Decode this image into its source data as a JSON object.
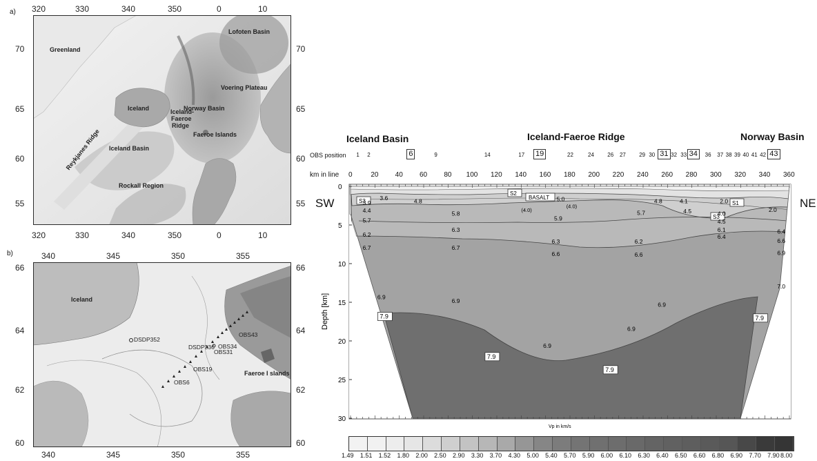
{
  "panel_a": {
    "letter": "a)",
    "top_ticks": [
      "320",
      "330",
      "340",
      "350",
      "0",
      "10"
    ],
    "bottom_ticks": [
      "320",
      "330",
      "340",
      "350",
      "0",
      "10"
    ],
    "left_ticks": [
      "70",
      "65",
      "60",
      "55"
    ],
    "right_ticks": [
      "70",
      "65",
      "60",
      "55"
    ],
    "labels": {
      "greenland": "Greenland",
      "lofoten": "Lofoten Basin",
      "voering": "Voering Plateau",
      "iceland": "Iceland",
      "ifr1": "Iceland-",
      "ifr2": "Faeroe",
      "ifr3": "Ridge",
      "norway": "Norway  Basin",
      "faeroe": "Faeroe Islands",
      "reykjanes": "Reykjanes Ridge",
      "iceland_basin": "Iceland Basin",
      "rockall": "Rockall Region"
    }
  },
  "panel_b": {
    "letter": "b)",
    "top_ticks": [
      "340",
      "345",
      "350",
      "355"
    ],
    "bottom_ticks": [
      "340",
      "345",
      "350",
      "355"
    ],
    "left_ticks": [
      "66",
      "64",
      "62",
      "60"
    ],
    "right_ticks": [
      "66",
      "64",
      "62",
      "60"
    ],
    "labels": {
      "iceland": "Iceland",
      "faeroe": "Faeroe I slands",
      "dsdp352": "DSDP352",
      "dsdp336": "DSDP336",
      "obs43": "OBS43",
      "obs34": "OBS34",
      "obs31": "OBS31",
      "obs19": "OBS19",
      "obs6": "OBS6"
    }
  },
  "section": {
    "regions": {
      "iceland_basin": "Iceland Basin",
      "ifr": "Iceland-Faeroe Ridge",
      "norway_basin": "Norway Basin"
    },
    "obs_label": "OBS position",
    "obs_positions": [
      {
        "n": "1",
        "km": 7,
        "boxed": false
      },
      {
        "n": "2",
        "km": 16,
        "boxed": false
      },
      {
        "n": "6",
        "km": 50,
        "boxed": true
      },
      {
        "n": "9",
        "km": 71,
        "boxed": false
      },
      {
        "n": "14",
        "km": 112,
        "boxed": false
      },
      {
        "n": "17",
        "km": 140,
        "boxed": false
      },
      {
        "n": "19",
        "km": 154,
        "boxed": true
      },
      {
        "n": "22",
        "km": 180,
        "boxed": false
      },
      {
        "n": "24",
        "km": 197,
        "boxed": false
      },
      {
        "n": "26",
        "km": 213,
        "boxed": false
      },
      {
        "n": "27",
        "km": 223,
        "boxed": false
      },
      {
        "n": "29",
        "km": 239,
        "boxed": false
      },
      {
        "n": "30",
        "km": 247,
        "boxed": false
      },
      {
        "n": "31",
        "km": 256,
        "boxed": true
      },
      {
        "n": "32",
        "km": 265,
        "boxed": false
      },
      {
        "n": "33",
        "km": 273,
        "boxed": false
      },
      {
        "n": "34",
        "km": 280,
        "boxed": true
      },
      {
        "n": "36",
        "km": 293,
        "boxed": false
      },
      {
        "n": "37",
        "km": 303,
        "boxed": false
      },
      {
        "n": "38",
        "km": 310,
        "boxed": false
      },
      {
        "n": "39",
        "km": 317,
        "boxed": false
      },
      {
        "n": "40",
        "km": 324,
        "boxed": false
      },
      {
        "n": "41",
        "km": 331,
        "boxed": false
      },
      {
        "n": "42",
        "km": 338,
        "boxed": false
      },
      {
        "n": "43",
        "km": 346,
        "boxed": true
      }
    ],
    "km_label": "km in line",
    "km_ticks": [
      "0",
      "20",
      "40",
      "60",
      "80",
      "100",
      "120",
      "140",
      "160",
      "180",
      "200",
      "220",
      "240",
      "260",
      "280",
      "300",
      "320",
      "340",
      "360"
    ],
    "depth_ticks": [
      "0",
      "5",
      "10",
      "15",
      "20",
      "25",
      "30"
    ],
    "ylabel": "Depth [km]",
    "sw": "SW",
    "ne": "NE",
    "vp_caption": "Vp in km/s",
    "boxed_labels": {
      "s3a": "S3",
      "s2": "S2",
      "basalt": "BASALT",
      "s1": "S1",
      "s3b": "S3"
    },
    "velocity_labels": [
      {
        "t": "3.6",
        "km": 24,
        "z": 1.8
      },
      {
        "t": "4.8",
        "km": 52,
        "z": 2.2
      },
      {
        "t": "5.0",
        "km": 169,
        "z": 1.9
      },
      {
        "t": "4.8",
        "km": 249,
        "z": 2.2
      },
      {
        "t": "4.1",
        "km": 270,
        "z": 2.2
      },
      {
        "t": "2.0",
        "km": 303,
        "z": 2.2
      },
      {
        "t": "2.0",
        "km": 343,
        "z": 3.3
      },
      {
        "t": "3.9",
        "km": 10,
        "z": 2.4
      },
      {
        "t": "4.4",
        "km": 10,
        "z": 3.4
      },
      {
        "t": "(4.0)",
        "km": 140,
        "z": 3.3
      },
      {
        "t": "(4.0)",
        "km": 177,
        "z": 2.8
      },
      {
        "t": "4.5",
        "km": 273,
        "z": 3.5
      },
      {
        "t": "4.0",
        "km": 301,
        "z": 3.8
      },
      {
        "t": "5.8",
        "km": 83,
        "z": 3.8
      },
      {
        "t": "5.9",
        "km": 167,
        "z": 4.4
      },
      {
        "t": "5.7",
        "km": 235,
        "z": 3.7
      },
      {
        "t": "4.5",
        "km": 301,
        "z": 4.8
      },
      {
        "t": "5.7",
        "km": 10,
        "z": 4.7
      },
      {
        "t": "6.1",
        "km": 301,
        "z": 5.9
      },
      {
        "t": "6.4",
        "km": 350,
        "z": 6.1
      },
      {
        "t": "6.3",
        "km": 83,
        "z": 5.9
      },
      {
        "t": "6.2",
        "km": 10,
        "z": 6.5
      },
      {
        "t": "6.4",
        "km": 301,
        "z": 6.8
      },
      {
        "t": "6.6",
        "km": 350,
        "z": 7.3
      },
      {
        "t": "6.3",
        "km": 165,
        "z": 7.4
      },
      {
        "t": "6.2",
        "km": 233,
        "z": 7.4
      },
      {
        "t": "6.7",
        "km": 10,
        "z": 8.2
      },
      {
        "t": "6.7",
        "km": 83,
        "z": 8.2
      },
      {
        "t": "6.6",
        "km": 165,
        "z": 9.0
      },
      {
        "t": "6.6",
        "km": 233,
        "z": 9.1
      },
      {
        "t": "6.9",
        "km": 350,
        "z": 8.9
      },
      {
        "t": "7.0",
        "km": 350,
        "z": 13.2
      },
      {
        "t": "6.9",
        "km": 22,
        "z": 14.6
      },
      {
        "t": "6.9",
        "km": 83,
        "z": 15.1
      },
      {
        "t": "6.9",
        "km": 252,
        "z": 15.6
      },
      {
        "t": "6.9",
        "km": 158,
        "z": 20.9
      },
      {
        "t": "6.9",
        "km": 227,
        "z": 18.7
      }
    ],
    "moho_labels": [
      {
        "t": "7.9",
        "km": 24,
        "z": 17.1
      },
      {
        "t": "7.9",
        "km": 112,
        "z": 22.3
      },
      {
        "t": "7.9",
        "km": 209,
        "z": 24.0
      },
      {
        "t": "7.9",
        "km": 332,
        "z": 17.3
      }
    ]
  },
  "colorbar": {
    "caption": "Vp in km/s",
    "values": [
      "1.49",
      "1.51",
      "1.52",
      "1.80",
      "2.00",
      "2.50",
      "2.90",
      "3.30",
      "3.70",
      "4.30",
      "5.00",
      "5.40",
      "5.70",
      "5.90",
      "6.00",
      "6.10",
      "6.30",
      "6.40",
      "6.50",
      "6.60",
      "6.80",
      "6.90",
      "7.70",
      "7.90",
      "8.00"
    ]
  },
  "colors": {
    "frame_dark": "#2a2a2a",
    "land": "#cfcfcf",
    "ocean_light": "#e6e6e6",
    "moho_fill": "#6e6e6e",
    "lower_crust": "#a0a0a0"
  }
}
